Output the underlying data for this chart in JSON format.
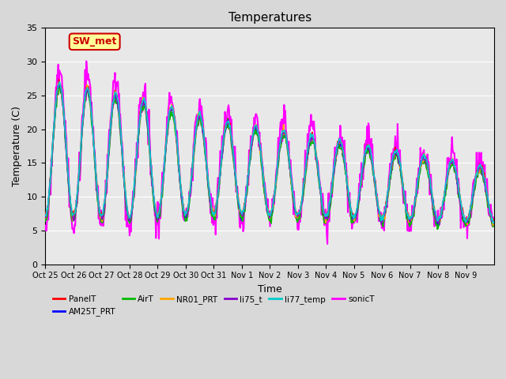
{
  "title": "Temperatures",
  "xlabel": "Time",
  "ylabel": "Temperature (C)",
  "ylim": [
    0,
    35
  ],
  "yticks": [
    0,
    5,
    10,
    15,
    20,
    25,
    30,
    35
  ],
  "x_labels": [
    "Oct 25",
    "Oct 26",
    "Oct 27",
    "Oct 28",
    "Oct 29",
    "Oct 30",
    "Oct 31",
    "Nov 1",
    "Nov 2",
    "Nov 3",
    "Nov 4",
    "Nov 5",
    "Nov 6",
    "Nov 7",
    "Nov 8",
    "Nov 9"
  ],
  "series": {
    "PanelT": {
      "color": "#ff0000",
      "lw": 1.2
    },
    "AM25T_PRT": {
      "color": "#0000ff",
      "lw": 1.2
    },
    "AirT": {
      "color": "#00bb00",
      "lw": 1.2
    },
    "NR01_PRT": {
      "color": "#ffa500",
      "lw": 1.2
    },
    "li75_t": {
      "color": "#8800cc",
      "lw": 1.2
    },
    "li77_temp": {
      "color": "#00cccc",
      "lw": 1.2
    },
    "sonicT": {
      "color": "#ff00ff",
      "lw": 1.5
    }
  },
  "annotation_text": "SW_met",
  "annotation_color": "#cc0000",
  "annotation_bg": "#ffff99"
}
